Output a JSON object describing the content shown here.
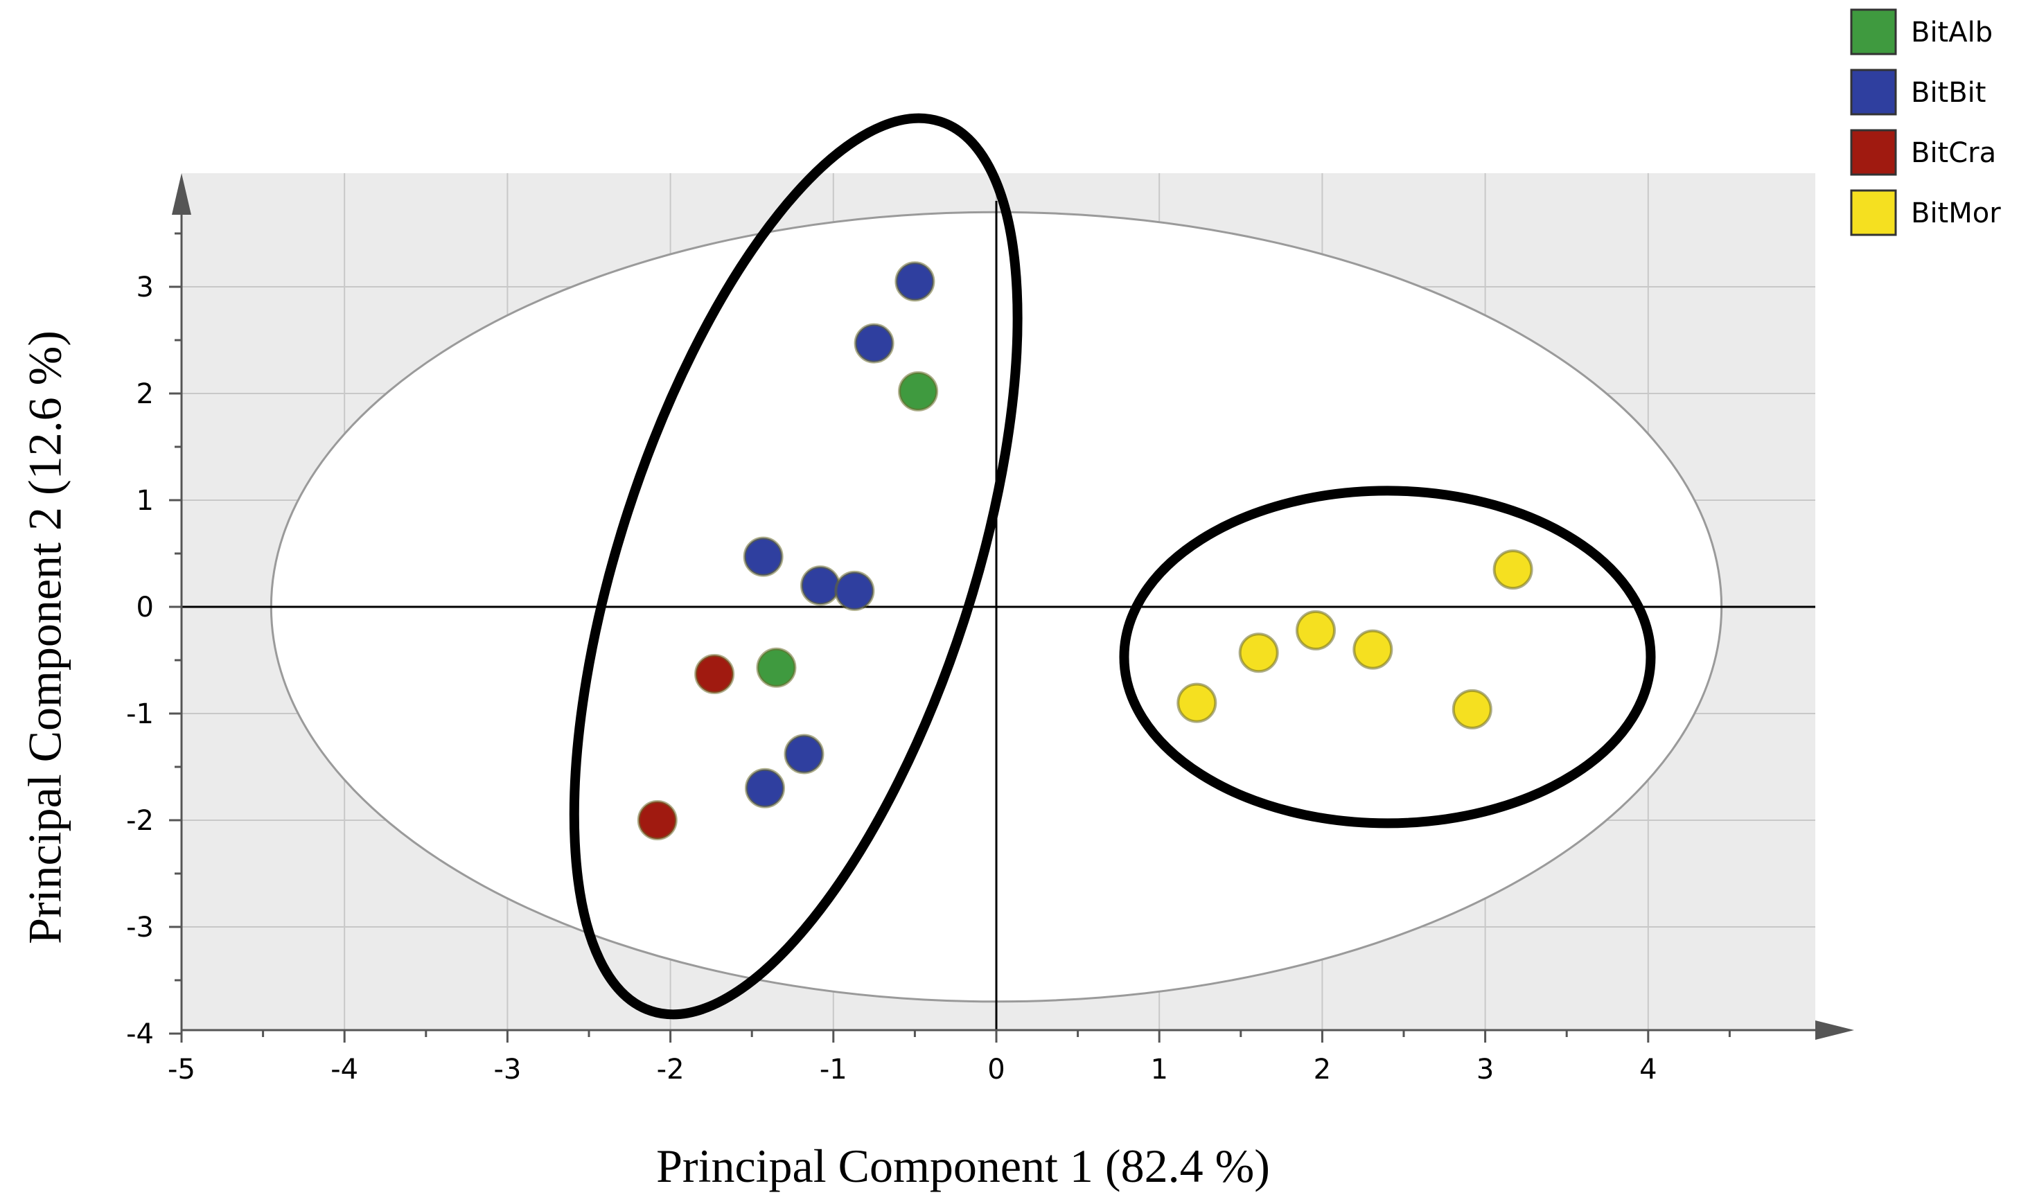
{
  "chart_data": {
    "type": "scatter",
    "xlabel": "Principal Component 1 (82.4 %)",
    "ylabel": "Principal Component 2 (12.6 %)",
    "xlim": [
      -5,
      4.5
    ],
    "ylim": [
      -4,
      3.8
    ],
    "x_ticks": [
      "-5",
      "-4",
      "-3",
      "-2",
      "-1",
      "0",
      "1",
      "2",
      "3",
      "4"
    ],
    "y_ticks": [
      "3",
      "2",
      "1",
      "0",
      "-1",
      "-2",
      "-3",
      "-4"
    ],
    "grid": true,
    "legend_position": "top-right",
    "series": [
      {
        "name": "BitAlb",
        "color": "#3f9a3f",
        "points": [
          {
            "x": -0.48,
            "y": 2.02
          },
          {
            "x": -1.35,
            "y": -0.57
          }
        ]
      },
      {
        "name": "BitBit",
        "color": "#2f3f9f",
        "points": [
          {
            "x": -0.5,
            "y": 3.05
          },
          {
            "x": -0.75,
            "y": 2.47
          },
          {
            "x": -1.43,
            "y": 0.47
          },
          {
            "x": -1.08,
            "y": 0.2
          },
          {
            "x": -0.87,
            "y": 0.15
          },
          {
            "x": -1.18,
            "y": -1.38
          },
          {
            "x": -1.42,
            "y": -1.7
          }
        ]
      },
      {
        "name": "BitCra",
        "color": "#a01a10",
        "points": [
          {
            "x": -1.73,
            "y": -0.63
          },
          {
            "x": -2.08,
            "y": -2.0
          }
        ]
      },
      {
        "name": "BitMor",
        "color": "#f5e020",
        "points": [
          {
            "x": 1.23,
            "y": -0.9
          },
          {
            "x": 1.61,
            "y": -0.43
          },
          {
            "x": 1.96,
            "y": -0.22
          },
          {
            "x": 2.31,
            "y": -0.4
          },
          {
            "x": 2.92,
            "y": -0.96
          },
          {
            "x": 3.17,
            "y": 0.35
          }
        ]
      }
    ]
  }
}
